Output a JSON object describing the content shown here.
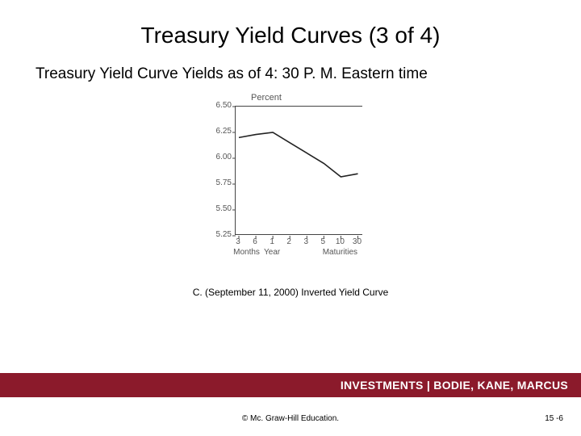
{
  "title": "Treasury Yield Curves (3 of 4)",
  "subtitle": "Treasury Yield Curve Yields as of 4: 30 P. M. Eastern time",
  "chart": {
    "type": "line",
    "y_title": "Percent",
    "ylim": [
      5.25,
      6.5
    ],
    "yticks": [
      6.5,
      6.25,
      6.0,
      5.75,
      5.5,
      5.25
    ],
    "ytick_labels": [
      "6.50",
      "6.25",
      "6.00",
      "5.75",
      "5.50",
      "5.25"
    ],
    "x_positions": [
      0,
      1,
      2,
      3,
      4,
      5,
      6,
      7
    ],
    "x_tick_labels": [
      "3",
      "6",
      "1",
      "2",
      "3",
      "5",
      "10",
      "30"
    ],
    "x_group_labels": [
      {
        "label": "Months",
        "center_idx": 0.5
      },
      {
        "label": "Year",
        "center_idx": 2
      },
      {
        "label": "Maturities",
        "center_idx": 6
      }
    ],
    "series": {
      "color": "#222222",
      "width": 1.6,
      "points": [
        {
          "x": 0,
          "y": 6.2
        },
        {
          "x": 1,
          "y": 6.23
        },
        {
          "x": 2,
          "y": 6.25
        },
        {
          "x": 3,
          "y": 6.15
        },
        {
          "x": 4,
          "y": 6.05
        },
        {
          "x": 5,
          "y": 5.95
        },
        {
          "x": 6,
          "y": 5.82
        },
        {
          "x": 7,
          "y": 5.85
        }
      ]
    },
    "border_color": "#444444",
    "background_color": "#ffffff"
  },
  "caption": "C. (September 11, 2000) Inverted Yield Curve",
  "footer": "INVESTMENTS | BODIE, KANE, MARCUS",
  "copyright": "© Mc. Graw-Hill Education.",
  "page": "15 -6"
}
